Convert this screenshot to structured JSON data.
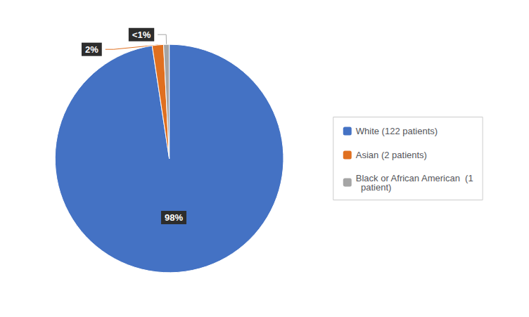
{
  "chart_data": {
    "type": "pie",
    "categories": [
      "White (122 patients)",
      "Asian (2 patients)",
      "Black or African American  (1\n  patient)"
    ],
    "values": [
      97.6,
      1.6,
      0.8
    ],
    "value_labels": [
      "98%",
      "2%",
      "<1%"
    ],
    "colors": [
      "#4472C4",
      "#E07020",
      "#A5A5A5"
    ],
    "data_labels": true,
    "legend": "right"
  }
}
